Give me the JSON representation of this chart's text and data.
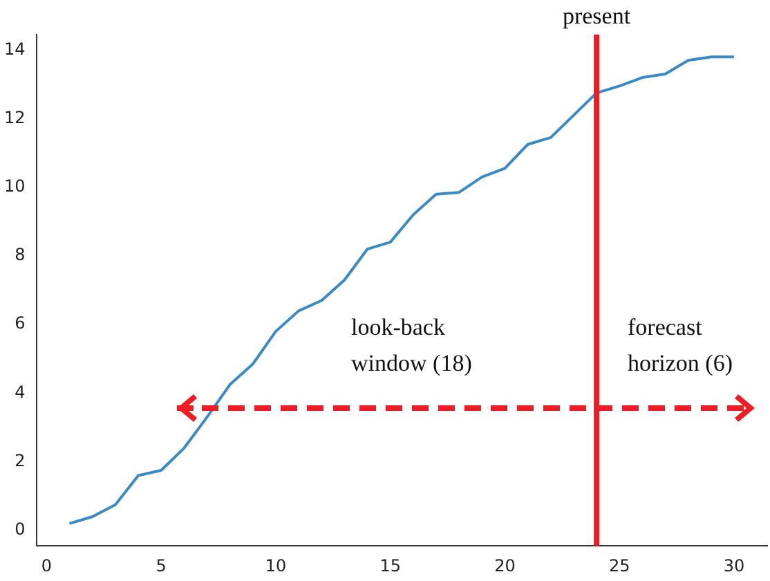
{
  "chart_data": {
    "type": "line",
    "x": [
      1,
      2,
      3,
      4,
      5,
      6,
      7,
      8,
      9,
      10,
      11,
      12,
      13,
      14,
      15,
      16,
      17,
      18,
      19,
      20,
      21,
      22,
      23,
      24,
      25,
      26,
      27,
      28,
      29,
      30
    ],
    "series": [
      {
        "color": "#3b8ac4",
        "values": [
          0.2,
          0.4,
          0.75,
          1.6,
          1.75,
          2.4,
          3.3,
          4.25,
          4.85,
          5.8,
          6.4,
          6.7,
          7.3,
          8.2,
          8.4,
          9.2,
          9.8,
          9.85,
          10.3,
          10.55,
          11.25,
          11.45,
          12.1,
          12.75,
          12.95,
          13.2,
          13.3,
          13.7,
          13.8,
          13.8
        ]
      }
    ],
    "xlim": [
      -0.45,
      31.45
    ],
    "xticks": [
      0,
      5,
      10,
      15,
      20,
      25,
      30
    ],
    "ylim": [
      -0.45,
      14.45
    ],
    "yticks": [
      0,
      2,
      4,
      6,
      8,
      10,
      12,
      14
    ],
    "ref_lines": [
      {
        "axis": "x",
        "value": 24,
        "label": "present",
        "color": "#ee1c25"
      }
    ],
    "annotations": [
      "look-back window (18)",
      "forecast horizon (6)"
    ],
    "grid": false,
    "legend": false,
    "marker": "none",
    "line_style": "solid"
  }
}
